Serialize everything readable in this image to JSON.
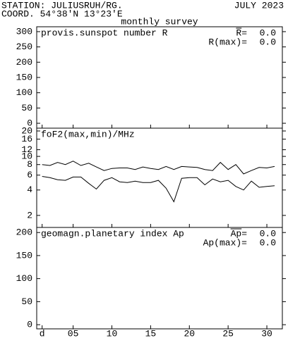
{
  "header": {
    "station": "STATION: JULIUSRUH/RG.",
    "date": "JULY 2023",
    "coord": "COORD. 54°38'N 13°23'E",
    "subtitle": "monthly survey"
  },
  "chart_data": [
    {
      "type": "line",
      "title": "provis.sunspot number R",
      "stats": [
        {
          "name": "R=",
          "value": 0,
          "label": "0.0"
        },
        {
          "name": "R(max)=",
          "value": 0,
          "label": "0.0"
        }
      ],
      "ylim": [
        -16,
        316
      ],
      "yticks": [
        0,
        50,
        100,
        150,
        200,
        250,
        300
      ]
    },
    {
      "type": "line",
      "title": "foF2(max,min)/MHz",
      "log_scale": true,
      "x": [
        1,
        2,
        3,
        4,
        5,
        6,
        7,
        8,
        9,
        10,
        11,
        12,
        13,
        14,
        15,
        16,
        17,
        18,
        19,
        20,
        21,
        22,
        23,
        24,
        25,
        26,
        27,
        28,
        29,
        30,
        31
      ],
      "series": [
        {
          "name": "max",
          "color": "#000000",
          "values": [
            8.0,
            7.8,
            8.5,
            8.0,
            8.8,
            7.8,
            8.3,
            7.5,
            6.8,
            7.2,
            7.3,
            7.3,
            7.0,
            7.5,
            7.2,
            7.0,
            7.6,
            7.0,
            7.6,
            7.5,
            7.4,
            7.0,
            6.8,
            8.5,
            7.0,
            8.0,
            6.2,
            6.8,
            7.4,
            7.3,
            7.6
          ]
        },
        {
          "name": "min",
          "color": "#000000",
          "values": [
            5.8,
            5.6,
            5.3,
            5.2,
            5.7,
            5.7,
            4.8,
            4.1,
            5.2,
            5.6,
            5.0,
            4.9,
            5.1,
            4.9,
            4.9,
            5.2,
            4.2,
            2.9,
            5.5,
            5.6,
            5.6,
            4.6,
            5.4,
            5.0,
            5.2,
            4.4,
            4.0,
            5.1,
            4.3,
            4.4,
            4.5
          ]
        }
      ],
      "ylim": [
        1.44,
        21.6
      ],
      "yticks": [
        2,
        4,
        6,
        8,
        10,
        12,
        16,
        20
      ]
    },
    {
      "type": "line",
      "title": "geomagn.planetary index Ap",
      "stats": [
        {
          "name": "Ap=",
          "value": 0,
          "label": "0.0"
        },
        {
          "name": "Ap(max)=",
          "value": 0,
          "label": "0.0"
        }
      ],
      "ylim": [
        -9,
        211
      ],
      "yticks": [
        0,
        50,
        100,
        150,
        200
      ],
      "xlim": [
        0.3,
        32
      ],
      "xticks": [
        {
          "value": 1,
          "label": "d"
        },
        {
          "value": 5,
          "label": "05"
        },
        10,
        15,
        20,
        25,
        30
      ]
    }
  ]
}
